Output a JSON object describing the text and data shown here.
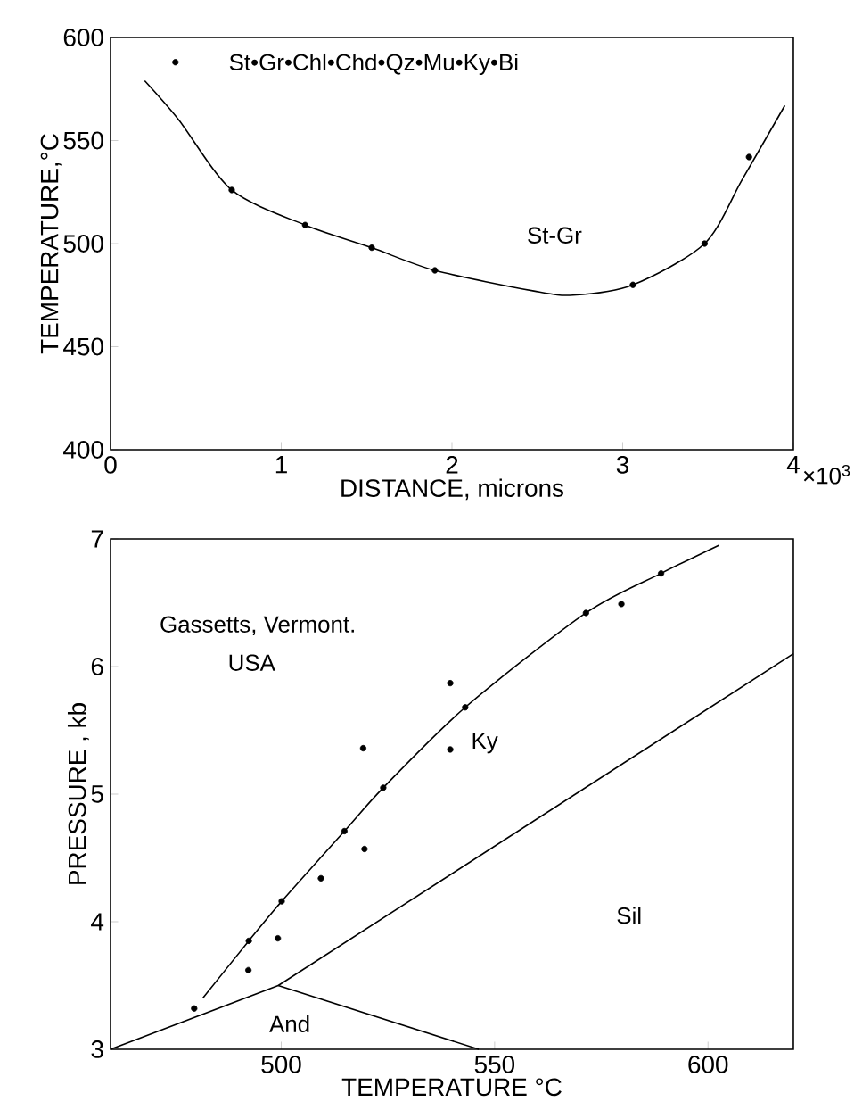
{
  "chart_data": [
    {
      "type": "scatter",
      "xlabel": "DISTANCE, microns",
      "ylabel": "TEMPERATURE,°C",
      "xlim": [
        0,
        4
      ],
      "xticks": [
        0,
        1,
        2,
        3,
        4
      ],
      "ylim": [
        400,
        600
      ],
      "yticks": [
        400,
        450,
        500,
        550,
        600
      ],
      "line_style": "solid",
      "annotations": [
        "St•Gr•Chl•Chd•Qz•Mu•Ky•Bi",
        "St-Gr",
        "×10$^{3}$"
      ],
      "series": [
        {
          "color": "#000000",
          "marker": "circle",
          "x": [
            0.38,
            0.71,
            1.14,
            1.53,
            1.9,
            3.06,
            3.48,
            3.74
          ],
          "values": [
            588,
            526,
            509,
            498,
            487,
            480,
            500,
            542
          ]
        },
        {
          "type": "line",
          "color": "#000000",
          "marker": "none",
          "x": [
            0.2,
            0.4,
            0.71,
            1.14,
            1.53,
            1.9,
            2.48,
            2.71,
            3.06,
            3.48,
            3.7,
            3.95
          ],
          "values": [
            579,
            560,
            526,
            509,
            498,
            487,
            477,
            475,
            480,
            500,
            531,
            567
          ]
        }
      ]
    },
    {
      "type": "scatter",
      "xlabel": "TEMPERATURE °C",
      "ylabel": "PRESSURE , kb",
      "xlim": [
        460,
        620
      ],
      "xticks": [
        500,
        550,
        600
      ],
      "ylim": [
        3,
        7
      ],
      "yticks": [
        3,
        4,
        5,
        6,
        7
      ],
      "line_style": "solid",
      "annotations": [
        "Gassetts, Vermont.",
        "USA",
        "Ky",
        "Sil",
        "And"
      ],
      "series": [
        {
          "color": "#000000",
          "marker": "circle",
          "x": [
            479.6,
            492.3,
            492.4,
            499.2,
            500.1,
            509.3,
            514.8,
            519.5,
            519.2,
            523.9,
            539.6,
            539.6,
            543.1,
            571.4,
            579.7,
            589.0
          ],
          "values": [
            3.32,
            3.62,
            3.85,
            3.87,
            4.16,
            4.34,
            4.71,
            4.57,
            5.36,
            5.05,
            5.87,
            5.35,
            5.68,
            6.42,
            6.49,
            6.73
          ]
        },
        {
          "type": "line",
          "color": "#000000",
          "marker": "none",
          "x": [
            481.6,
            492.4,
            500.1,
            514.8,
            523.9,
            543.1,
            571.4,
            589.0,
            602.5
          ],
          "values": [
            3.4,
            3.85,
            4.16,
            4.71,
            5.05,
            5.68,
            6.42,
            6.73,
            6.95
          ]
        },
        {
          "type": "line",
          "color": "#000000",
          "marker": "none",
          "x": [
            460,
            499.3
          ],
          "values": [
            3.0,
            3.5
          ]
        },
        {
          "type": "line",
          "color": "#000000",
          "marker": "none",
          "x": [
            499.3,
            620
          ],
          "values": [
            3.5,
            6.1
          ]
        },
        {
          "type": "line",
          "color": "#000000",
          "marker": "none",
          "x": [
            499.3,
            546.3
          ],
          "values": [
            3.5,
            3.0
          ]
        }
      ]
    }
  ]
}
